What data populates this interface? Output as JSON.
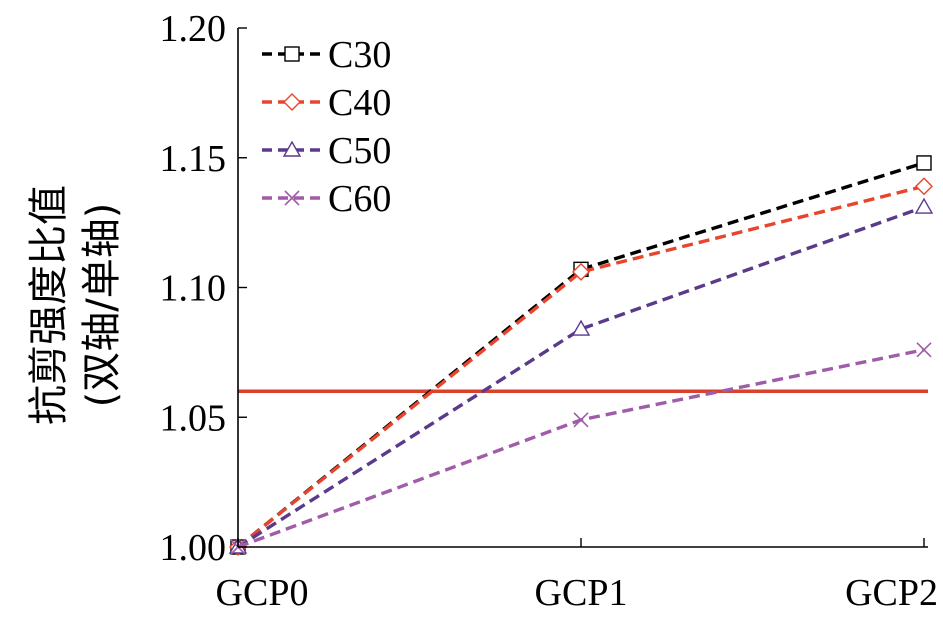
{
  "chart_data": {
    "type": "line",
    "title": "",
    "xlabel": "",
    "ylabel": "抗剪强度比值",
    "ylabel_sub": "(双轴/单轴)",
    "categories": [
      "GCP0",
      "GCP1",
      "GCP2"
    ],
    "ylim": [
      1.0,
      1.2
    ],
    "yticks": [
      "1.00",
      "1.05",
      "1.10",
      "1.15",
      "1.20"
    ],
    "ytick_values": [
      1.0,
      1.05,
      1.1,
      1.15,
      1.2
    ],
    "grid": false,
    "legend_position": "top-left",
    "series": [
      {
        "name": "C30",
        "values": [
          1.0,
          1.107,
          1.148
        ],
        "color": "#000000",
        "marker": "square"
      },
      {
        "name": "C40",
        "values": [
          1.0,
          1.106,
          1.139
        ],
        "color": "#e8452c",
        "marker": "diamond"
      },
      {
        "name": "C50",
        "values": [
          1.0,
          1.084,
          1.131
        ],
        "color": "#5b3a8c",
        "marker": "triangle"
      },
      {
        "name": "C60",
        "values": [
          1.0,
          1.049,
          1.076
        ],
        "color": "#a05ca8",
        "marker": "x"
      }
    ],
    "reference_line": {
      "y": 1.06,
      "color": "#d9412b"
    }
  }
}
